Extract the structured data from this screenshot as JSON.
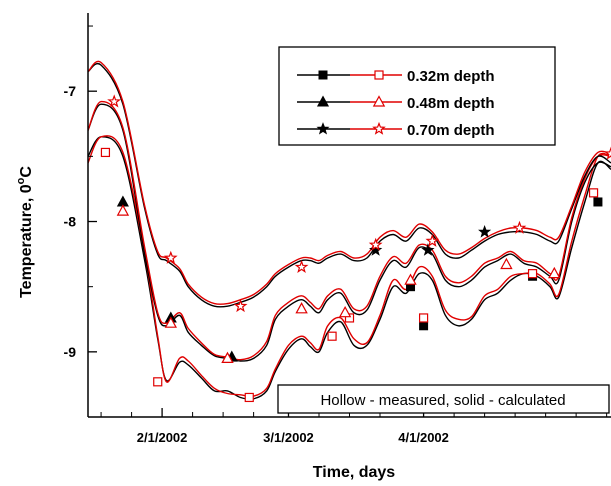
{
  "chart_data": {
    "type": "line",
    "xlabel": "Time, days",
    "ylabel": "Temperature, 0°C",
    "ylabel_main": "Temperature, 0",
    "ylabel_sup": "o",
    "ylabel_unit": "C",
    "xlim": [
      0,
      120
    ],
    "ylim": [
      -9.5,
      -6.4
    ],
    "x_ticks": [
      {
        "value": 17,
        "label": "2/1/2002"
      },
      {
        "value": 46,
        "label": "3/1/2002"
      },
      {
        "value": 77,
        "label": "4/1/2002"
      }
    ],
    "x_minor_ticks": [
      3,
      10,
      24,
      31,
      38,
      53,
      60,
      67,
      84,
      91,
      98,
      105,
      112,
      119
    ],
    "y_ticks": [
      {
        "value": -7,
        "label": "-7"
      },
      {
        "value": -8,
        "label": "-8"
      },
      {
        "value": -9,
        "label": "-9"
      }
    ],
    "grid": false,
    "legend_position": "top-right",
    "legend": [
      {
        "label": "0.32m depth",
        "solid_marker": "square",
        "hollow_marker": "square"
      },
      {
        "label": "0.48m depth",
        "solid_marker": "triangle",
        "hollow_marker": "triangle"
      },
      {
        "label": "0.70m depth",
        "solid_marker": "star",
        "hollow_marker": "star"
      }
    ],
    "annotation": "Hollow - measured, solid - calculated",
    "colors": {
      "calculated": "#000000",
      "measured": "#e00000"
    },
    "series": [
      {
        "name": "0.32m depth",
        "marker": "square",
        "calculated_x": [
          0,
          3,
          8,
          13,
          16,
          18,
          21,
          23,
          26,
          29,
          32,
          35,
          38,
          41,
          43,
          46,
          49,
          51,
          53,
          55,
          58,
          61,
          64,
          67,
          70,
          73,
          76,
          79,
          82,
          85,
          88,
          91,
          94,
          97,
          100,
          103,
          106,
          108,
          111,
          114,
          117,
          120
        ],
        "calculated_y": [
          -7.5,
          -7.35,
          -7.5,
          -8.3,
          -8.9,
          -9.22,
          -9.08,
          -9.1,
          -9.2,
          -9.3,
          -9.3,
          -9.35,
          -9.36,
          -9.3,
          -9.15,
          -8.98,
          -8.9,
          -8.96,
          -9.0,
          -8.85,
          -8.77,
          -8.95,
          -8.95,
          -8.75,
          -8.5,
          -8.55,
          -8.4,
          -8.45,
          -8.72,
          -8.8,
          -8.75,
          -8.6,
          -8.55,
          -8.45,
          -8.4,
          -8.42,
          -8.5,
          -8.58,
          -8.2,
          -7.85,
          -7.55,
          -7.6
        ],
        "measured_x": [
          0,
          3,
          8,
          13,
          16,
          18,
          21,
          23,
          26,
          29,
          32,
          35,
          38,
          41,
          43,
          46,
          49,
          51,
          53,
          55,
          58,
          61,
          64,
          67,
          70,
          73,
          76,
          79,
          82,
          85,
          88,
          91,
          94,
          97,
          100,
          103,
          106,
          108,
          111,
          114,
          117,
          120
        ],
        "measured_y": [
          -7.55,
          -7.35,
          -7.47,
          -8.25,
          -8.88,
          -9.23,
          -9.05,
          -9.07,
          -9.18,
          -9.28,
          -9.32,
          -9.33,
          -9.34,
          -9.28,
          -9.13,
          -8.95,
          -8.88,
          -8.93,
          -8.98,
          -8.8,
          -8.74,
          -8.9,
          -8.93,
          -8.72,
          -8.45,
          -8.52,
          -8.35,
          -8.42,
          -8.68,
          -8.75,
          -8.73,
          -8.57,
          -8.52,
          -8.42,
          -8.4,
          -8.4,
          -8.48,
          -8.56,
          -8.15,
          -7.8,
          -7.5,
          -7.5
        ],
        "calculated_markers_x": [
          74,
          77,
          102,
          117
        ],
        "calculated_markers_y": [
          -8.5,
          -8.8,
          -8.42,
          -7.85
        ],
        "measured_markers_x": [
          4,
          16,
          37,
          56,
          60,
          77,
          102,
          116
        ],
        "measured_markers_y": [
          -7.47,
          -9.23,
          -9.35,
          -8.88,
          -8.74,
          -8.74,
          -8.4,
          -7.78
        ]
      },
      {
        "name": "0.48m depth",
        "marker": "triangle",
        "calculated_x": [
          0,
          3,
          8,
          13,
          16,
          18,
          21,
          23,
          26,
          29,
          32,
          35,
          38,
          41,
          43,
          46,
          49,
          51,
          53,
          55,
          58,
          61,
          64,
          67,
          70,
          73,
          76,
          79,
          82,
          85,
          88,
          91,
          94,
          97,
          100,
          103,
          106,
          108,
          111,
          114,
          117,
          120
        ],
        "calculated_y": [
          -7.3,
          -7.1,
          -7.3,
          -8.25,
          -8.72,
          -8.8,
          -8.72,
          -8.85,
          -8.95,
          -9.03,
          -9.05,
          -9.07,
          -9.05,
          -8.95,
          -8.75,
          -8.65,
          -8.6,
          -8.65,
          -8.7,
          -8.6,
          -8.55,
          -8.7,
          -8.68,
          -8.45,
          -8.3,
          -8.35,
          -8.2,
          -8.25,
          -8.45,
          -8.5,
          -8.45,
          -8.35,
          -8.3,
          -8.25,
          -8.32,
          -8.35,
          -8.42,
          -8.45,
          -8.0,
          -7.7,
          -7.55,
          -7.58
        ],
        "measured_x": [
          0,
          3,
          8,
          13,
          16,
          18,
          21,
          23,
          26,
          29,
          32,
          35,
          38,
          41,
          43,
          46,
          49,
          51,
          53,
          55,
          58,
          61,
          64,
          67,
          70,
          73,
          76,
          79,
          82,
          85,
          88,
          91,
          94,
          97,
          100,
          103,
          106,
          108,
          111,
          114,
          117,
          120
        ],
        "measured_y": [
          -7.3,
          -7.08,
          -7.28,
          -8.2,
          -8.7,
          -8.78,
          -8.7,
          -8.82,
          -8.93,
          -9.02,
          -9.04,
          -9.06,
          -9.03,
          -8.92,
          -8.72,
          -8.62,
          -8.57,
          -8.62,
          -8.67,
          -8.57,
          -8.52,
          -8.67,
          -8.65,
          -8.42,
          -8.27,
          -8.32,
          -8.18,
          -8.22,
          -8.42,
          -8.47,
          -8.42,
          -8.32,
          -8.28,
          -8.23,
          -8.3,
          -8.32,
          -8.4,
          -8.42,
          -7.97,
          -7.67,
          -7.5,
          -7.5
        ],
        "calculated_markers_x": [
          8,
          19,
          33
        ],
        "calculated_markers_y": [
          -7.85,
          -8.74,
          -9.04
        ],
        "measured_markers_x": [
          8,
          19,
          32,
          49,
          59,
          74,
          96,
          107
        ],
        "measured_markers_y": [
          -7.92,
          -8.78,
          -9.05,
          -8.67,
          -8.7,
          -8.45,
          -8.33,
          -8.4
        ]
      },
      {
        "name": "0.70m depth",
        "marker": "star",
        "calculated_x": [
          0,
          3,
          8,
          13,
          16,
          18,
          21,
          23,
          26,
          29,
          32,
          35,
          38,
          41,
          43,
          46,
          49,
          51,
          53,
          55,
          58,
          61,
          64,
          67,
          70,
          73,
          76,
          79,
          82,
          85,
          88,
          91,
          94,
          97,
          100,
          103,
          106,
          108,
          111,
          114,
          117,
          120
        ],
        "calculated_y": [
          -6.85,
          -6.8,
          -7.1,
          -7.9,
          -8.25,
          -8.3,
          -8.38,
          -8.5,
          -8.6,
          -8.65,
          -8.65,
          -8.62,
          -8.58,
          -8.5,
          -8.42,
          -8.35,
          -8.3,
          -8.3,
          -8.32,
          -8.28,
          -8.25,
          -8.3,
          -8.28,
          -8.15,
          -8.1,
          -8.15,
          -8.05,
          -8.1,
          -8.25,
          -8.28,
          -8.22,
          -8.15,
          -8.1,
          -8.08,
          -8.08,
          -8.1,
          -8.15,
          -8.15,
          -7.9,
          -7.65,
          -7.5,
          -7.55
        ],
        "measured_x": [
          0,
          3,
          8,
          13,
          16,
          18,
          21,
          23,
          26,
          29,
          32,
          35,
          38,
          41,
          43,
          46,
          49,
          51,
          53,
          55,
          58,
          61,
          64,
          67,
          70,
          73,
          76,
          79,
          82,
          85,
          88,
          91,
          94,
          97,
          100,
          103,
          106,
          108,
          111,
          114,
          117,
          120
        ],
        "measured_y": [
          -6.85,
          -6.78,
          -7.08,
          -7.88,
          -8.23,
          -8.28,
          -8.36,
          -8.48,
          -8.58,
          -8.63,
          -8.63,
          -8.6,
          -8.56,
          -8.48,
          -8.4,
          -8.33,
          -8.28,
          -8.28,
          -8.3,
          -8.26,
          -8.23,
          -8.28,
          -8.25,
          -8.12,
          -8.07,
          -8.12,
          -8.02,
          -8.08,
          -8.22,
          -8.25,
          -8.2,
          -8.13,
          -8.08,
          -8.05,
          -8.05,
          -8.07,
          -8.12,
          -8.12,
          -7.88,
          -7.62,
          -7.47,
          -7.48
        ],
        "calculated_markers_x": [
          66,
          78,
          91
        ],
        "calculated_markers_y": [
          -8.22,
          -8.22,
          -8.08
        ],
        "measured_markers_x": [
          6,
          19,
          35,
          49,
          66,
          79,
          99,
          120
        ],
        "measured_markers_y": [
          -7.08,
          -8.28,
          -8.65,
          -8.35,
          -8.18,
          -8.15,
          -8.05,
          -7.48
        ]
      }
    ]
  }
}
